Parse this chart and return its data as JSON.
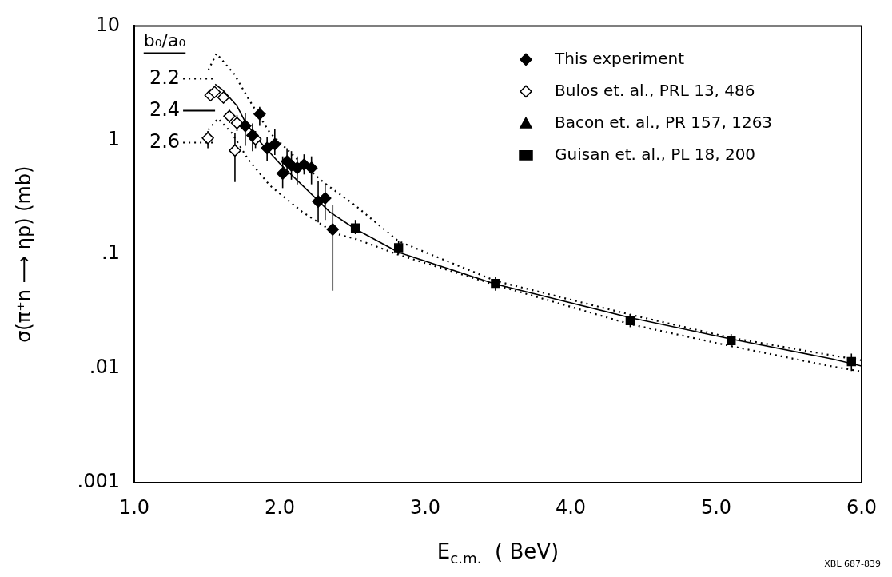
{
  "chart_data": {
    "type": "scatter",
    "xlabel": "E$_{c.m.}$  ( BeV)",
    "ylabel": "σ(π⁺n ⟶ ηp) (mb)",
    "legend_title": "b₀/a₀",
    "annotations": [
      "XBL 687-839"
    ],
    "log": "y",
    "legend": "top right",
    "xlim": [
      1.0,
      6.0
    ],
    "xticks": [
      {
        "value": 1,
        "label": "1.0"
      },
      {
        "value": 2,
        "label": "2.0"
      },
      {
        "value": 3,
        "label": "3.0"
      },
      {
        "value": 4,
        "label": "4.0"
      },
      {
        "value": 5,
        "label": "5.0"
      },
      {
        "value": 6,
        "label": "6.0"
      }
    ],
    "ylim": [
      0.001,
      10
    ],
    "yticks": [
      {
        "value": 0.001,
        "label": ".001"
      },
      {
        "value": 0.01,
        "label": ".01"
      },
      {
        "value": 0.1,
        "label": ".1"
      },
      {
        "value": 1,
        "label": "1"
      },
      {
        "value": 10,
        "label": "10"
      }
    ],
    "series": [
      {
        "name": "This experiment",
        "marker": "diamond",
        "color": "#000000",
        "x": [
          1.763,
          1.813,
          1.862,
          1.913,
          1.966,
          2.02,
          2.05,
          2.08,
          2.12,
          2.167,
          2.218,
          2.264,
          2.312,
          2.364
        ],
        "values": [
          1.33,
          1.1,
          1.69,
          0.85,
          0.92,
          0.51,
          0.65,
          0.6,
          0.57,
          0.61,
          0.57,
          0.29,
          0.31,
          0.165
        ],
        "errors": [
          [
            0.89,
            1.74
          ],
          [
            0.8,
            1.4
          ],
          [
            1.33,
            1.95
          ],
          [
            0.66,
            1.07
          ],
          [
            0.74,
            1.26
          ],
          [
            0.38,
            0.72
          ],
          [
            0.5,
            0.85
          ],
          [
            0.45,
            0.8
          ],
          [
            0.41,
            0.72
          ],
          [
            0.5,
            0.75
          ],
          [
            0.41,
            0.72
          ],
          [
            0.19,
            0.44
          ],
          [
            0.2,
            0.42
          ],
          [
            0.048,
            0.27
          ]
        ]
      },
      {
        "name": "Bulos et. al., PRL 13, 486",
        "marker": "diamond",
        "color": "#ffffff",
        "x": [
          1.506,
          1.524,
          1.552,
          1.613,
          1.654,
          1.692,
          1.706,
          1.833
        ],
        "values": [
          1.04,
          2.47,
          2.63,
          2.36,
          1.62,
          0.81,
          1.41,
          1.02
        ],
        "errors": [
          [
            0.85,
            1.2
          ],
          null,
          null,
          [
            2.1,
            2.6
          ],
          [
            1.41,
            1.84
          ],
          [
            0.43,
            1.16
          ],
          [
            1.2,
            1.65
          ],
          [
            0.85,
            1.2
          ]
        ]
      },
      {
        "name": "Bacon et. al., PR 157, 1263",
        "marker": "triangle",
        "color": "#000000"
      },
      {
        "name": "Guisan et. al., PL 18, 200",
        "marker": "square",
        "color": "#000000",
        "x": [
          2.52,
          2.817,
          3.483,
          4.409,
          5.103,
          5.93
        ],
        "values": [
          0.17,
          0.114,
          0.0556,
          0.0262,
          0.0175,
          0.0115
        ],
        "errors": [
          [
            0.15,
            0.2
          ],
          [
            0.1,
            0.13
          ],
          [
            0.048,
            0.064
          ],
          [
            0.023,
            0.03
          ],
          [
            0.0155,
            0.02
          ],
          [
            0.0095,
            0.0135
          ]
        ]
      },
      {
        "name": "2.2",
        "type": "line",
        "line_style": "dotted",
        "color": "#000000",
        "x": [
          1.509,
          1.565,
          1.688,
          1.782,
          1.932,
          2.12,
          2.308,
          2.515,
          2.817,
          3.483,
          4.41,
          5.1,
          5.8,
          6.0
        ],
        "values": [
          4.09,
          5.73,
          3.78,
          2.33,
          1.16,
          0.68,
          0.42,
          0.27,
          0.13,
          0.0585,
          0.0296,
          0.0186,
          0.013,
          0.0118
        ]
      },
      {
        "name": "2.4",
        "type": "line",
        "line_style": "solid",
        "color": "#000000",
        "x": [
          1.556,
          1.613,
          1.706,
          1.763,
          1.857,
          2.007,
          2.157,
          2.345,
          2.515,
          2.817,
          3.483,
          4.409,
          5.103,
          5.8,
          6.0
        ],
        "values": [
          3.08,
          2.71,
          1.99,
          1.44,
          0.99,
          0.61,
          0.4,
          0.234,
          0.168,
          0.104,
          0.0548,
          0.0279,
          0.0181,
          0.0121,
          0.0105
        ]
      },
      {
        "name": "2.6",
        "type": "line",
        "line_style": "dotted",
        "color": "#000000",
        "x": [
          1.509,
          1.575,
          1.669,
          1.782,
          1.932,
          2.157,
          2.383,
          2.533,
          2.817,
          3.483,
          4.41,
          5.1,
          5.8,
          6.0
        ],
        "values": [
          1.23,
          1.54,
          1.16,
          0.68,
          0.4,
          0.234,
          0.152,
          0.135,
          0.099,
          0.054,
          0.0244,
          0.0157,
          0.0104,
          0.0094
        ]
      }
    ]
  }
}
